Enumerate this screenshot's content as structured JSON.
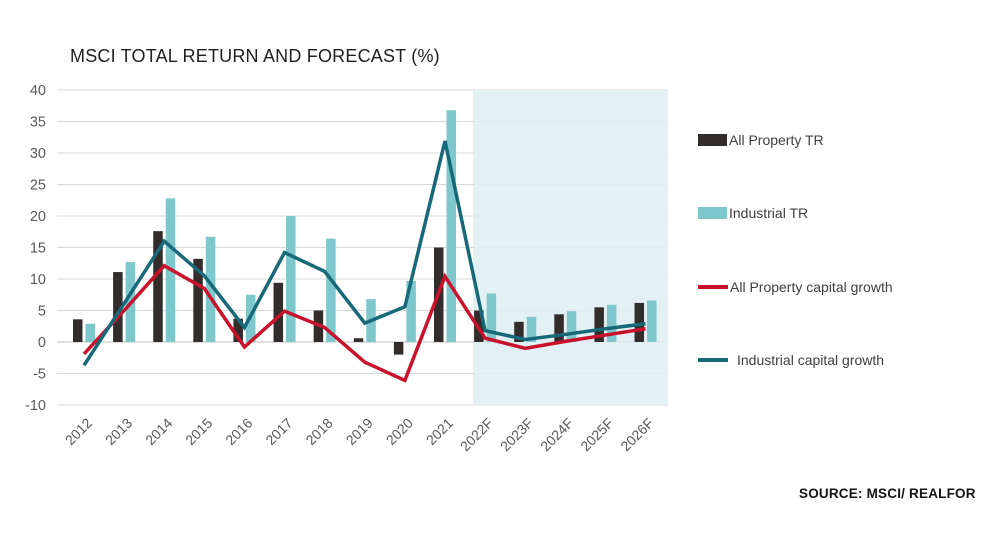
{
  "title": "MSCI TOTAL RETURN AND FORECAST (%)",
  "source": "SOURCE: MSCI/ REALFOR",
  "colors": {
    "all_property_tr_bar": "#322D2B",
    "industrial_tr_bar": "#7EC7CC",
    "all_property_capital_growth_line": "#C9122B",
    "industrial_capital_growth_line": "#17697A",
    "forecast_shade": "#DFEEF2",
    "gridline": "#D9D9D9",
    "zero_axis": "#BFBFBF",
    "axis_text": "#595959"
  },
  "legend": [
    {
      "label": "All Property TR",
      "type": "bar",
      "color": "#322D2B"
    },
    {
      "label": "Industrial TR",
      "type": "bar",
      "color": "#7EC7CC"
    },
    {
      "label": "All Property capital growth",
      "type": "line",
      "color": "#C9122B"
    },
    {
      "label": "Industrial capital growth",
      "type": "line",
      "color": "#17697A"
    }
  ],
  "chart_data": {
    "type": "bar",
    "subtype": "bar-and-line combo",
    "title": "MSCI TOTAL RETURN AND FORECAST (%)",
    "categories": [
      "2012",
      "2013",
      "2014",
      "2015",
      "2016",
      "2017",
      "2018",
      "2019",
      "2020",
      "2021",
      "2022F",
      "2023F",
      "2024F",
      "2025F",
      "2026F"
    ],
    "series": [
      {
        "name": "All Property TR",
        "type": "bar",
        "color": "#322D2B",
        "values": [
          3.6,
          11.1,
          17.6,
          13.2,
          3.7,
          9.4,
          5.0,
          0.6,
          -2.0,
          15.0,
          5.0,
          3.2,
          4.4,
          5.5,
          6.2
        ]
      },
      {
        "name": "Industrial TR",
        "type": "bar",
        "color": "#7EC7CC",
        "values": [
          2.9,
          12.7,
          22.8,
          16.7,
          7.5,
          20.0,
          16.4,
          6.8,
          9.7,
          36.8,
          7.7,
          4.0,
          4.9,
          5.9,
          6.6
        ]
      },
      {
        "name": "All Property capital growth",
        "type": "line",
        "color": "#C9122B",
        "values": [
          -1.9,
          5.0,
          12.1,
          8.5,
          -0.8,
          4.9,
          2.3,
          -3.2,
          -6.1,
          10.4,
          0.6,
          -1.0,
          0.1,
          1.1,
          2.1
        ]
      },
      {
        "name": "Industrial capital growth",
        "type": "line",
        "color": "#17697A",
        "values": [
          -3.7,
          6.1,
          16.0,
          10.5,
          2.3,
          14.2,
          11.2,
          3.0,
          5.6,
          31.9,
          1.8,
          0.4,
          1.2,
          2.1,
          2.9
        ]
      }
    ],
    "xlabel": "",
    "ylabel": "",
    "ylim": [
      -10,
      40
    ],
    "ytick_step": 5,
    "ytick_labels": [
      "40",
      "35",
      "30",
      "25",
      "20",
      "15",
      "10",
      "5",
      "0",
      "-5",
      "-10"
    ],
    "grid": true,
    "legend_position": "right",
    "forecast_start_category": "2022F",
    "forecast_shade_color": "#DFEEF2"
  }
}
